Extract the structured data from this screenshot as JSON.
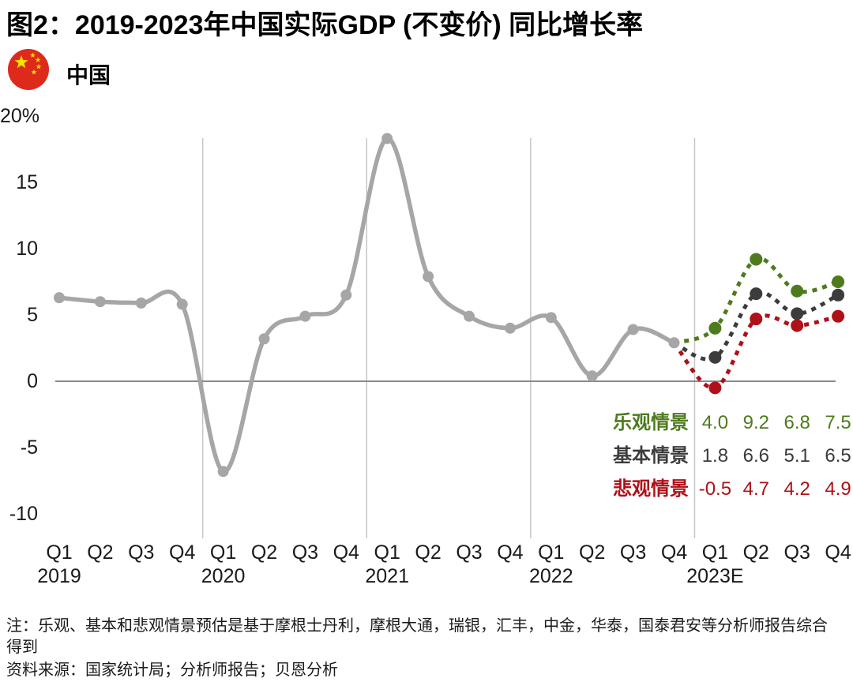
{
  "title": "图2：2019-2023年中国实际GDP (不变价) 同比增长率",
  "country": {
    "label": "中国",
    "flag_red": "#de2a1b",
    "flag_star_yellow": "#ffde00"
  },
  "chart_data": {
    "type": "line",
    "title": "2019-2023年中国实际GDP (不变价) 同比增长率",
    "ylim": [
      -10,
      20
    ],
    "grid": "vertical-year-separators",
    "zero_line": true,
    "y_ticks": [
      {
        "label": "20%",
        "value": 20
      },
      {
        "label": "15",
        "value": 15
      },
      {
        "label": "10",
        "value": 10
      },
      {
        "label": "5",
        "value": 5
      },
      {
        "label": "0",
        "value": 0
      },
      {
        "label": "-5",
        "value": -5
      },
      {
        "label": "-10",
        "value": -10
      }
    ],
    "x_quarters": [
      "Q1",
      "Q2",
      "Q3",
      "Q4",
      "Q1",
      "Q2",
      "Q3",
      "Q4",
      "Q1",
      "Q2",
      "Q3",
      "Q4",
      "Q1",
      "Q2",
      "Q3",
      "Q4",
      "Q1",
      "Q2",
      "Q3",
      "Q4"
    ],
    "x_years": [
      {
        "label": "2019",
        "quarter_index": 0
      },
      {
        "label": "2020",
        "quarter_index": 4
      },
      {
        "label": "2021",
        "quarter_index": 8
      },
      {
        "label": "2022",
        "quarter_index": 12
      },
      {
        "label": "2023E",
        "quarter_index": 16
      }
    ],
    "series": [
      {
        "name": "中国实际GDP同比增长率 (历史)",
        "style": "solid",
        "color": "#a6a6a6",
        "x_start_index": 0,
        "values": [
          6.3,
          6.0,
          5.9,
          5.8,
          -6.8,
          3.2,
          4.9,
          6.5,
          18.3,
          7.9,
          4.9,
          4.0,
          4.8,
          0.4,
          3.9,
          2.9
        ]
      },
      {
        "name": "乐观情景",
        "style": "dotted",
        "color": "#4e7b1e",
        "x_start_index": 16,
        "connects_from_index": 15,
        "values": [
          4.0,
          9.2,
          6.8,
          7.5
        ]
      },
      {
        "name": "基本情景",
        "style": "dotted",
        "color": "#3c3c3c",
        "x_start_index": 16,
        "connects_from_index": 15,
        "values": [
          1.8,
          6.6,
          5.1,
          6.5
        ]
      },
      {
        "name": "悲观情景",
        "style": "dotted",
        "color": "#ae1118",
        "x_start_index": 16,
        "connects_from_index": 15,
        "values": [
          -0.5,
          4.7,
          4.2,
          4.9
        ]
      }
    ],
    "legend_position": "inside-right-below-zero",
    "colors": {
      "gridline": "#c6c6c6",
      "zero_line": "#8a8a8a"
    }
  },
  "notes": {
    "note": "注：乐观、基本和悲观情景预估是基于摩根士丹利，摩根大通，瑞银，汇丰，中金，华泰，国泰君安等分析师报告综合得到",
    "source": "资料来源：国家统计局；分析师报告；贝恩分析"
  }
}
